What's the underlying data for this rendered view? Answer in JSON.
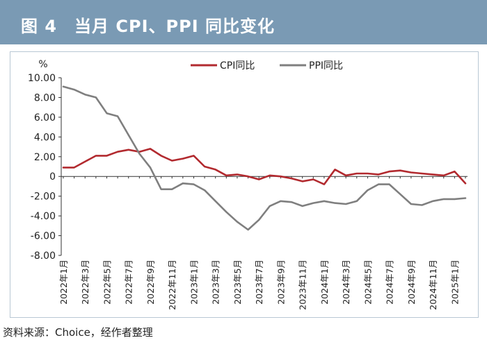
{
  "header": {
    "title": "图 4　当月 CPI、PPI 同比变化"
  },
  "source": "资料来源：Choice，经作者整理",
  "chart_data": {
    "type": "line",
    "title": "当月 CPI、PPI 同比变化",
    "ylabel": "%",
    "ylim": [
      -8,
      10
    ],
    "yticks": [
      "10.00",
      "8.00",
      "6.00",
      "4.00",
      "2.00",
      "0",
      "-2.00",
      "-4.00",
      "-6.00",
      "-8.00"
    ],
    "ytick_values": [
      10,
      8,
      6,
      4,
      2,
      0,
      -2,
      -4,
      -6,
      -8
    ],
    "legend_position": "top-center",
    "grid": false,
    "x": [
      "2022年1月",
      "2022年2月",
      "2022年3月",
      "2022年4月",
      "2022年5月",
      "2022年6月",
      "2022年7月",
      "2022年8月",
      "2022年9月",
      "2022年10月",
      "2022年11月",
      "2022年12月",
      "2023年1月",
      "2023年2月",
      "2023年3月",
      "2023年4月",
      "2023年5月",
      "2023年6月",
      "2023年7月",
      "2023年8月",
      "2023年9月",
      "2023年10月",
      "2023年11月",
      "2023年12月",
      "2024年1月",
      "2024年2月",
      "2024年3月",
      "2024年4月",
      "2024年5月",
      "2024年6月",
      "2024年7月",
      "2024年8月",
      "2024年9月",
      "2024年10月",
      "2024年11月",
      "2024年12月",
      "2025年1月",
      "2025年2月"
    ],
    "xtick_labels": [
      "2022年1月",
      "2022年3月",
      "2022年5月",
      "2022年7月",
      "2022年9月",
      "2022年11月",
      "2023年1月",
      "2023年3月",
      "2023年5月",
      "2023年7月",
      "2023年9月",
      "2023年11月",
      "2024年1月",
      "2024年3月",
      "2024年5月",
      "2024年7月",
      "2024年9月",
      "2024年11月",
      "2025年1月"
    ],
    "series": [
      {
        "name": "CPI同比",
        "color": "#b22a2f",
        "values": [
          0.9,
          0.9,
          1.5,
          2.1,
          2.1,
          2.5,
          2.7,
          2.5,
          2.8,
          2.1,
          1.6,
          1.8,
          2.1,
          1.0,
          0.7,
          0.1,
          0.2,
          0.0,
          -0.3,
          0.1,
          0.0,
          -0.2,
          -0.5,
          -0.3,
          -0.8,
          0.7,
          0.1,
          0.3,
          0.3,
          0.2,
          0.5,
          0.6,
          0.4,
          0.3,
          0.2,
          0.1,
          0.5,
          -0.7
        ]
      },
      {
        "name": "PPI同比",
        "color": "#7f7f7f",
        "values": [
          9.1,
          8.8,
          8.3,
          8.0,
          6.4,
          6.1,
          4.2,
          2.3,
          0.9,
          -1.3,
          -1.3,
          -0.7,
          -0.8,
          -1.4,
          -2.5,
          -3.6,
          -4.6,
          -5.4,
          -4.4,
          -3.0,
          -2.5,
          -2.6,
          -3.0,
          -2.7,
          -2.5,
          -2.7,
          -2.8,
          -2.5,
          -1.4,
          -0.8,
          -0.8,
          -1.8,
          -2.8,
          -2.9,
          -2.5,
          -2.3,
          -2.3,
          -2.2
        ]
      }
    ]
  }
}
